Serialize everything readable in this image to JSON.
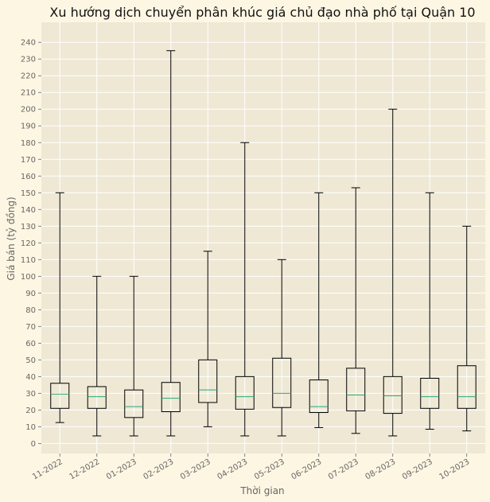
{
  "chart_data": {
    "type": "box",
    "title": "Xu hướng dịch chuyển phân khúc giá chủ đạo nhà phố tại Quận 10",
    "xlabel": "Thời gian",
    "ylabel": "Giá bán (tỷ đồng)",
    "ylim": [
      -6,
      252
    ],
    "yticks": [
      0,
      10,
      20,
      30,
      40,
      50,
      60,
      70,
      80,
      90,
      100,
      110,
      120,
      130,
      140,
      150,
      160,
      170,
      180,
      190,
      200,
      210,
      220,
      230,
      240
    ],
    "grid": true,
    "categories": [
      "11-2022",
      "12-2022",
      "01-2023",
      "02-2023",
      "03-2023",
      "04-2023",
      "05-2023",
      "06-2023",
      "07-2023",
      "08-2023",
      "09-2023",
      "10-2023"
    ],
    "boxes": [
      {
        "min": 12.5,
        "q1": 21,
        "median": 29.5,
        "q3": 36,
        "max": 150
      },
      {
        "min": 4.5,
        "q1": 21,
        "median": 28,
        "q3": 34,
        "max": 100
      },
      {
        "min": 4.5,
        "q1": 15.5,
        "median": 22,
        "q3": 32,
        "max": 100
      },
      {
        "min": 4.5,
        "q1": 19,
        "median": 27,
        "q3": 36.5,
        "max": 235
      },
      {
        "min": 10,
        "q1": 24.5,
        "median": 32,
        "q3": 50,
        "max": 115
      },
      {
        "min": 4.5,
        "q1": 20.5,
        "median": 28,
        "q3": 40,
        "max": 180
      },
      {
        "min": 4.5,
        "q1": 21.5,
        "median": 30,
        "q3": 51,
        "max": 110
      },
      {
        "min": 9.5,
        "q1": 18.5,
        "median": 22,
        "q3": 38,
        "max": 150
      },
      {
        "min": 6,
        "q1": 19.5,
        "median": 29,
        "q3": 45,
        "max": 153
      },
      {
        "min": 4.5,
        "q1": 18,
        "median": 28.5,
        "q3": 40,
        "max": 200
      },
      {
        "min": 8.5,
        "q1": 21,
        "median": 28,
        "q3": 39,
        "max": 150
      },
      {
        "min": 7.5,
        "q1": 21,
        "median": 28,
        "q3": 46.5,
        "max": 130
      }
    ],
    "colors": {
      "page_background": "#fdf6e3",
      "plot_background": "#eee8d5",
      "grid": "#ffffff",
      "box": "#000000",
      "median": "#2aa876",
      "text": "#666666",
      "title": "#111111"
    }
  }
}
